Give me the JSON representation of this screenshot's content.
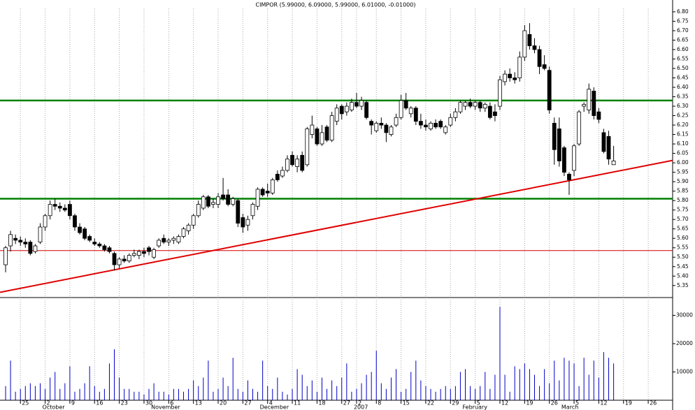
{
  "chart_data": [
    {
      "type": "candlestick",
      "title": "CIMPOR (5.99000, 6.09000, 5.99000, 6.01000, -0.01000)",
      "categories": [
        null,
        null,
        null,
        "25",
        null,
        null,
        null,
        null,
        "2",
        null,
        null,
        null,
        null,
        "9",
        null,
        null,
        null,
        null,
        "16",
        null,
        null,
        null,
        null,
        "23",
        null,
        null,
        null,
        null,
        "30",
        null,
        null,
        null,
        null,
        "6",
        null,
        null,
        null,
        null,
        "13",
        null,
        null,
        null,
        null,
        "20",
        null,
        null,
        null,
        null,
        "27",
        null,
        null,
        null,
        null,
        "4",
        null,
        null,
        null,
        null,
        "11",
        null,
        null,
        null,
        null,
        "18",
        null,
        null,
        null,
        null,
        "27",
        null,
        null,
        "2",
        null,
        null,
        null,
        "8",
        null,
        null,
        null,
        null,
        "15",
        null,
        null,
        null,
        null,
        "22",
        null,
        null,
        null,
        null,
        "29",
        null,
        null,
        null,
        null,
        "5",
        null,
        null,
        null,
        null,
        "12",
        null,
        null,
        null,
        null,
        "19",
        null,
        null,
        null,
        null,
        "26",
        null,
        null,
        null,
        null,
        "5",
        null,
        null,
        null,
        null,
        "12",
        null,
        null,
        null,
        null,
        "19",
        null,
        null,
        null,
        null,
        "26",
        null,
        null,
        null,
        null
      ],
      "months": [
        null,
        null,
        null,
        null,
        null,
        null,
        null,
        null,
        "October",
        null,
        null,
        null,
        null,
        null,
        null,
        null,
        null,
        null,
        null,
        null,
        null,
        null,
        null,
        null,
        null,
        null,
        null,
        null,
        null,
        null,
        "November",
        null,
        null,
        null,
        null,
        null,
        null,
        null,
        null,
        null,
        null,
        null,
        null,
        null,
        null,
        null,
        null,
        null,
        null,
        null,
        null,
        null,
        "December",
        null,
        null,
        null,
        null,
        null,
        null,
        null,
        null,
        null,
        null,
        null,
        null,
        null,
        null,
        null,
        null,
        null,
        null,
        "2007",
        null,
        null,
        null,
        null,
        null,
        null,
        null,
        null,
        null,
        null,
        null,
        null,
        null,
        null,
        null,
        null,
        null,
        null,
        null,
        null,
        null,
        "February",
        null,
        null,
        null,
        null,
        null,
        null,
        null,
        null,
        null,
        null,
        null,
        null,
        null,
        null,
        null,
        null,
        null,
        null,
        null,
        "March",
        null,
        null,
        null,
        null,
        null,
        null,
        null,
        null,
        null,
        null,
        null,
        null,
        null,
        null,
        null,
        null,
        null,
        null,
        null,
        null,
        null
      ],
      "open": [
        5.46,
        5.56,
        5.6,
        5.59,
        5.58,
        5.58,
        5.53,
        5.58,
        5.66,
        5.72,
        5.78,
        5.77,
        5.76,
        5.78,
        5.72,
        5.66,
        5.65,
        5.61,
        5.58,
        5.57,
        5.56,
        5.55,
        5.52,
        5.46,
        5.49,
        5.48,
        5.51,
        5.51,
        5.53,
        5.55,
        5.5,
        5.56,
        5.6,
        5.58,
        5.59,
        5.58,
        5.61,
        5.64,
        5.67,
        5.72,
        5.76,
        5.82,
        5.78,
        5.78,
        5.83,
        5.83,
        5.78,
        5.8,
        5.71,
        5.67,
        5.72,
        5.77,
        5.86,
        5.85,
        5.84,
        5.94,
        5.93,
        5.96,
        6.04,
        5.98,
        6.04,
        5.99,
        6.15,
        6.18,
        6.1,
        6.19,
        6.12,
        6.22,
        6.3,
        6.27,
        6.28,
        6.32,
        6.3,
        6.32,
        6.22,
        6.17,
        6.21,
        6.2,
        6.15,
        6.2,
        6.24,
        6.33,
        6.26,
        6.29,
        6.22,
        6.2,
        6.18,
        6.21,
        6.22,
        6.16,
        6.2,
        6.24,
        6.27,
        6.3,
        6.32,
        6.3,
        6.32,
        6.29,
        6.3,
        6.27,
        6.3,
        6.43,
        6.47,
        6.45,
        6.45,
        6.56,
        6.68,
        6.62,
        6.6,
        6.52,
        6.49,
        6.21,
        6.18,
        6.08,
        5.94,
        5.96,
        6.1,
        6.3,
        6.28,
        6.38,
        6.27,
        6.16,
        6.14,
        5.99,
        null,
        null,
        null,
        null,
        null,
        null,
        null,
        null,
        null,
        null,
        null
      ],
      "high": [
        5.56,
        5.64,
        5.62,
        5.61,
        5.6,
        5.59,
        5.57,
        5.68,
        5.73,
        5.8,
        5.81,
        5.79,
        5.78,
        5.8,
        5.73,
        5.68,
        5.66,
        5.62,
        5.6,
        5.58,
        5.57,
        5.56,
        5.53,
        5.5,
        5.51,
        5.52,
        5.54,
        5.54,
        5.55,
        5.56,
        5.55,
        5.6,
        5.62,
        5.6,
        5.61,
        5.62,
        5.66,
        5.68,
        5.73,
        5.8,
        5.83,
        5.83,
        5.81,
        5.84,
        5.92,
        5.86,
        5.82,
        5.81,
        5.73,
        5.72,
        5.79,
        5.87,
        5.87,
        5.89,
        5.92,
        5.96,
        5.98,
        6.04,
        6.06,
        6.04,
        6.06,
        6.19,
        6.25,
        6.19,
        6.2,
        6.2,
        6.27,
        6.31,
        6.31,
        6.32,
        6.34,
        6.37,
        6.35,
        6.33,
        6.23,
        6.22,
        6.24,
        6.21,
        6.2,
        6.26,
        6.36,
        6.37,
        6.3,
        6.3,
        6.26,
        6.23,
        6.22,
        6.23,
        6.23,
        6.2,
        6.26,
        6.29,
        6.33,
        6.33,
        6.34,
        6.33,
        6.33,
        6.32,
        6.32,
        6.31,
        6.46,
        6.49,
        6.5,
        6.48,
        6.59,
        6.73,
        6.74,
        6.66,
        6.62,
        6.57,
        6.51,
        6.24,
        6.24,
        6.09,
        5.95,
        6.1,
        6.28,
        6.32,
        6.42,
        6.4,
        6.29,
        6.18,
        6.17,
        6.09,
        null,
        null,
        null,
        null,
        null,
        null,
        null,
        null,
        null,
        null,
        null
      ],
      "low": [
        5.42,
        5.53,
        5.57,
        5.56,
        5.55,
        5.51,
        5.52,
        5.57,
        5.64,
        5.7,
        5.75,
        5.74,
        5.74,
        5.7,
        5.64,
        5.62,
        5.59,
        5.58,
        5.56,
        5.55,
        5.53,
        5.52,
        5.43,
        5.44,
        5.47,
        5.47,
        5.5,
        5.49,
        5.5,
        5.51,
        5.49,
        5.55,
        5.57,
        5.56,
        5.57,
        5.57,
        5.6,
        5.62,
        5.65,
        5.71,
        5.75,
        5.76,
        5.76,
        5.76,
        5.8,
        5.77,
        5.77,
        5.66,
        5.63,
        5.64,
        5.7,
        5.75,
        5.82,
        5.82,
        5.83,
        5.9,
        5.92,
        5.95,
        5.98,
        5.95,
        5.95,
        5.98,
        6.13,
        6.09,
        6.09,
        6.11,
        6.11,
        6.2,
        6.23,
        6.25,
        6.27,
        6.29,
        6.28,
        6.23,
        6.15,
        6.16,
        6.18,
        6.11,
        6.14,
        6.19,
        6.23,
        6.28,
        6.24,
        6.2,
        6.18,
        6.17,
        6.17,
        6.18,
        6.18,
        6.15,
        6.19,
        6.22,
        6.26,
        6.28,
        6.29,
        6.28,
        6.27,
        6.27,
        6.23,
        6.22,
        6.28,
        6.41,
        6.43,
        6.42,
        6.43,
        6.54,
        6.6,
        6.58,
        6.47,
        6.49,
        6.26,
        5.99,
        5.98,
        5.93,
        5.83,
        5.93,
        6.09,
        6.27,
        6.26,
        6.23,
        6.21,
        6.05,
        5.99,
        5.99,
        null,
        null,
        null,
        null,
        null,
        null,
        null,
        null,
        null,
        null,
        null
      ],
      "close": [
        5.55,
        5.62,
        5.59,
        5.58,
        5.57,
        5.52,
        5.56,
        5.66,
        5.72,
        5.78,
        5.77,
        5.76,
        5.75,
        5.72,
        5.66,
        5.63,
        5.6,
        5.59,
        5.57,
        5.56,
        5.54,
        5.53,
        5.46,
        5.49,
        5.48,
        5.51,
        5.52,
        5.53,
        5.52,
        5.53,
        5.54,
        5.59,
        5.58,
        5.59,
        5.6,
        5.61,
        5.65,
        5.67,
        5.72,
        5.78,
        5.82,
        5.77,
        5.79,
        5.82,
        5.81,
        5.78,
        5.81,
        5.68,
        5.66,
        5.7,
        5.78,
        5.86,
        5.83,
        5.84,
        5.91,
        5.91,
        5.96,
        6.02,
        5.99,
        6.02,
        5.96,
        6.18,
        6.2,
        6.1,
        6.16,
        6.12,
        6.25,
        6.29,
        6.26,
        6.3,
        6.32,
        6.3,
        6.33,
        6.24,
        6.2,
        6.21,
        6.2,
        6.16,
        6.19,
        6.24,
        6.33,
        6.29,
        6.29,
        6.22,
        6.2,
        6.19,
        6.21,
        6.19,
        6.19,
        6.19,
        6.24,
        6.27,
        6.32,
        6.32,
        6.3,
        6.32,
        6.29,
        6.31,
        6.24,
        6.25,
        6.44,
        6.47,
        6.45,
        6.44,
        6.56,
        6.7,
        6.62,
        6.6,
        6.51,
        6.5,
        6.28,
        6.07,
        6.01,
        5.95,
        5.91,
        6.09,
        6.27,
        6.31,
        6.39,
        6.25,
        6.23,
        6.06,
        6.02,
        6.01,
        null,
        null,
        null,
        null,
        null,
        null,
        null,
        null,
        null,
        null,
        null
      ],
      "up_color": "#ffffff",
      "down_color": "#000000",
      "ylim": [
        5.29,
        6.833
      ],
      "yticks": [
        5.35,
        {
          "value": 5.4,
          "label": "5.40"
        },
        5.45,
        {
          "value": 5.5,
          "label": "5.50"
        },
        5.55,
        {
          "value": 5.6,
          "label": "5.60"
        },
        5.65,
        {
          "value": 5.7,
          "label": "5.70"
        },
        5.75,
        {
          "value": 5.8,
          "label": "5.80"
        },
        5.85,
        {
          "value": 5.9,
          "label": "5.90"
        },
        5.95,
        {
          "value": 6.0,
          "label": "6.00"
        },
        6.05,
        {
          "value": 6.1,
          "label": "6.10"
        },
        6.15,
        {
          "value": 6.2,
          "label": "6.20"
        },
        6.25,
        {
          "value": 6.3,
          "label": "6.30"
        },
        6.35,
        {
          "value": 6.4,
          "label": "6.40"
        },
        6.45,
        {
          "value": 6.5,
          "label": "6.50"
        },
        6.55,
        {
          "value": 6.6,
          "label": "6.60"
        },
        6.65,
        {
          "value": 6.7,
          "label": "6.70"
        },
        6.75,
        {
          "value": 6.8,
          "label": "6.80"
        }
      ],
      "hlines": [
        {
          "value": 6.33,
          "color": "#008000"
        },
        {
          "value": 5.81,
          "color": "#008000"
        },
        {
          "value": 5.535,
          "color": "#d00000"
        }
      ],
      "trendline": {
        "start": [
          0,
          5.32
        ],
        "end": [
          134,
          6.008
        ],
        "color": "#e00000"
      }
    },
    {
      "type": "bar",
      "values": [
        5000,
        14000,
        3000,
        4000,
        5000,
        6000,
        5000,
        6000,
        4000,
        8000,
        10000,
        4000,
        6000,
        12000,
        3000,
        4000,
        6000,
        12000,
        5000,
        3000,
        4000,
        13000,
        18000,
        8000,
        4000,
        4000,
        3000,
        3000,
        2000,
        4000,
        6000,
        3000,
        3000,
        2000,
        4000,
        4000,
        3000,
        4000,
        7000,
        5000,
        8000,
        14000,
        3000,
        4000,
        8000,
        5000,
        15000,
        4000,
        3000,
        7000,
        4000,
        3000,
        14000,
        5000,
        4000,
        8000,
        3000,
        2000,
        4000,
        11000,
        9000,
        5000,
        7000,
        3000,
        8000,
        4000,
        7000,
        5000,
        8000,
        13000,
        3000,
        4000,
        6000,
        9000,
        10000,
        17500,
        6000,
        4000,
        8000,
        11000,
        3000,
        4000,
        10000,
        14000,
        7000,
        5000,
        4000,
        3000,
        4000,
        5000,
        4000,
        5000,
        10000,
        11000,
        5000,
        4000,
        5000,
        10000,
        4000,
        9000,
        33000,
        9000,
        3000,
        12000,
        11000,
        13000,
        11000,
        9000,
        5000,
        11000,
        6000,
        14000,
        7000,
        15000,
        14000,
        13000,
        5000,
        15000,
        9000,
        14000,
        8000,
        17000,
        15000,
        13000,
        null,
        null,
        null,
        null,
        null,
        null,
        null,
        null,
        null,
        null,
        null
      ],
      "color": "#0000c8",
      "ylim": [
        0,
        35800
      ],
      "yticks": [
        10000,
        20000,
        30000
      ]
    }
  ]
}
